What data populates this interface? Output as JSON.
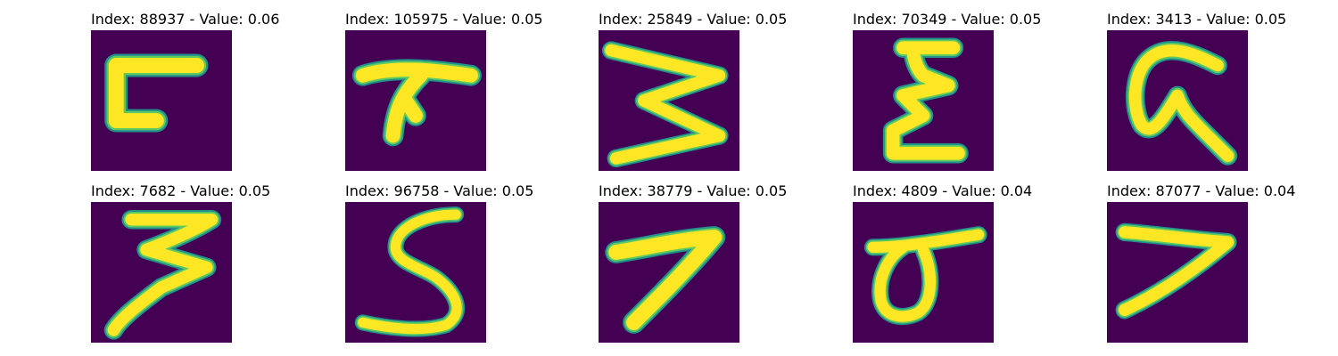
{
  "figure": {
    "background": "#ffffff",
    "colormap": "viridis",
    "colors": {
      "image_background": "#440154",
      "stroke_outer": "#21918c",
      "stroke_mid": "#5ec962",
      "stroke_core": "#fde725"
    },
    "panels": [
      {
        "title": "Index: 88937 - Value: 0.06",
        "index": 88937,
        "value": 0.06,
        "glyph": "¬ / flipped-L stroke"
      },
      {
        "title": "Index: 105975 - Value: 0.05",
        "index": 105975,
        "value": 0.05,
        "glyph": "T-like stroke"
      },
      {
        "title": "Index: 25849 - Value: 0.05",
        "index": 25849,
        "value": 0.05,
        "glyph": "zigzag (3/W-like)"
      },
      {
        "title": "Index: 70349 - Value: 0.05",
        "index": 70349,
        "value": 0.05,
        "glyph": "E-like stroke"
      },
      {
        "title": "Index: 3413 - Value: 0.05",
        "index": 3413,
        "value": 0.05,
        "glyph": "G-like stroke"
      },
      {
        "title": "Index: 7682 - Value: 0.05",
        "index": 7682,
        "value": 0.05,
        "glyph": "3-like stroke"
      },
      {
        "title": "Index: 96758 - Value: 0.05",
        "index": 96758,
        "value": 0.05,
        "glyph": "S-like stroke"
      },
      {
        "title": "Index: 38779 - Value: 0.05",
        "index": 38779,
        "value": 0.05,
        "glyph": "7-like stroke"
      },
      {
        "title": "Index: 4809 - Value: 0.04",
        "index": 4809,
        "value": 0.04,
        "glyph": "loop with top bar"
      },
      {
        "title": "Index: 87077 - Value: 0.04",
        "index": 87077,
        "value": 0.04,
        "glyph": "7-like stroke"
      }
    ]
  }
}
